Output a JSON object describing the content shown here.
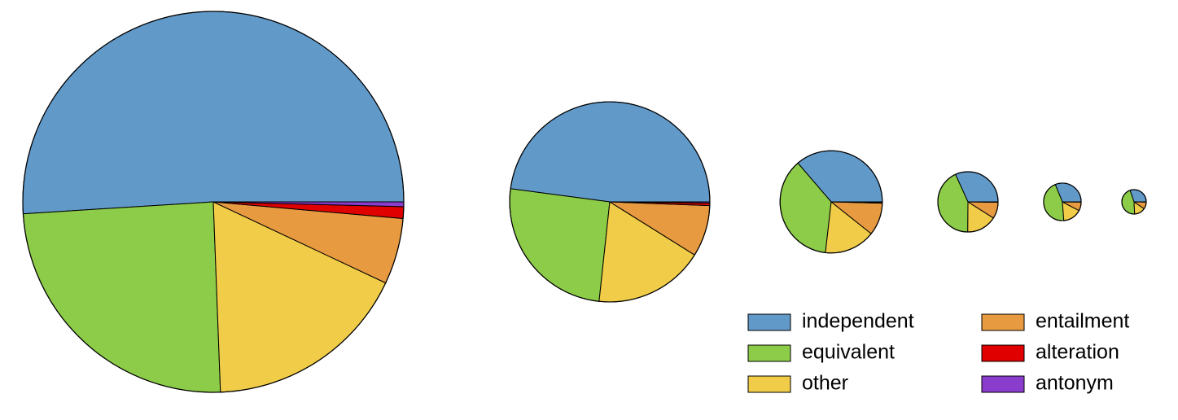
{
  "chart_data": {
    "type": "pie",
    "categories": [
      "independent",
      "equivalent",
      "other",
      "entailment",
      "alteration",
      "antonym"
    ],
    "colors": [
      "#6199c9",
      "#8ccc48",
      "#f0cc48",
      "#e89a40",
      "#e00000",
      "#8a3ccc"
    ],
    "pies": [
      {
        "size": 100,
        "values": [
          51.0,
          24.6,
          17.4,
          5.6,
          1.0,
          0.4
        ]
      },
      {
        "size": 27.6,
        "values": [
          47.9,
          25.4,
          17.8,
          8.3,
          0.4,
          0.2
        ]
      },
      {
        "size": 7.2,
        "values": [
          36.3,
          36.9,
          16.1,
          10.3,
          0.3,
          0.1
        ]
      },
      {
        "size": 2.5,
        "values": [
          31.8,
          43.1,
          16.1,
          8.8,
          0.1,
          0.1
        ]
      },
      {
        "size": 0.97,
        "values": [
          31.2,
          45.0,
          16.1,
          7.5,
          0.1,
          0.1
        ]
      },
      {
        "size": 0.41,
        "values": [
          30.3,
          45.5,
          14.7,
          9.3,
          0.1,
          0.1
        ]
      }
    ],
    "legend": "lower right"
  }
}
